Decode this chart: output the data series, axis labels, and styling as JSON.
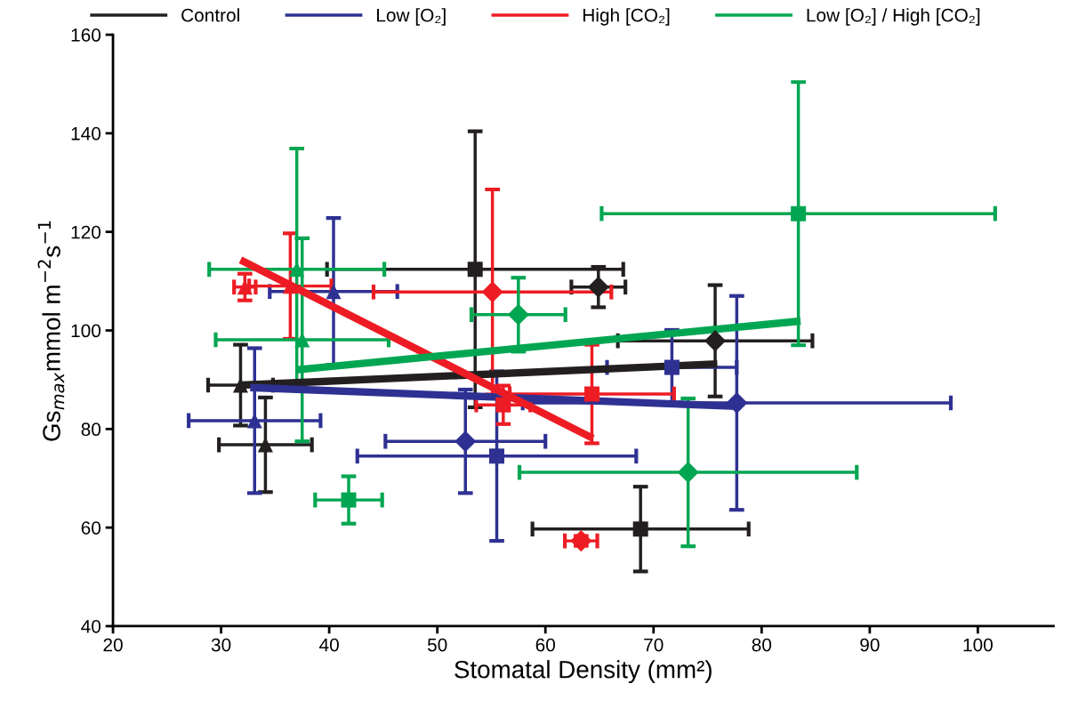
{
  "chart_data": {
    "type": "scatter",
    "xlabel": "Stomatal Density (mm²)",
    "ylabel": "Gs$_{max}$mmol m$^{−2}$s$^{−1}$",
    "xlim": [
      20,
      107
    ],
    "xticks": [
      20,
      30,
      40,
      50,
      60,
      70,
      80,
      90,
      100
    ],
    "ylim": [
      40,
      160
    ],
    "yticks": [
      40,
      60,
      80,
      100,
      120,
      140,
      160
    ],
    "grid": false,
    "legend": "top",
    "series": [
      {
        "type": "line",
        "name": "Control",
        "color": "#231f20",
        "x": [
          31.8,
          75.9
        ],
        "values": [
          88.9,
          93.2
        ]
      },
      {
        "type": "line",
        "name": "Low [O₂]",
        "color": "#2e3192",
        "x": [
          32.7,
          77.7
        ],
        "values": [
          88.4,
          84.6
        ]
      },
      {
        "type": "line",
        "name": "High [CO₂]",
        "color": "#ed1c24",
        "x": [
          31.8,
          64.4
        ],
        "values": [
          114.3,
          78.1
        ]
      },
      {
        "type": "line",
        "name": "Low [O₂] / High [CO₂]",
        "color": "#00a651",
        "x": [
          36.9,
          83.6
        ],
        "values": [
          92.0,
          101.9
        ]
      },
      {
        "color": "#231f20",
        "marker": "triangle",
        "x": [
          31.8,
          34.1
        ],
        "values": [
          88.9,
          76.8
        ],
        "errors": [
          8.2,
          9.6
        ],
        "xerrors": [
          3.0,
          4.3
        ]
      },
      {
        "color": "#231f20",
        "marker": "square",
        "x": [
          53.5,
          68.8
        ],
        "values": [
          112.4,
          59.7
        ],
        "errors": [
          28,
          8.6
        ],
        "xerrors": [
          13.7,
          10
        ]
      },
      {
        "color": "#231f20",
        "marker": "diamond",
        "x": [
          64.9,
          75.7
        ],
        "values": [
          108.8,
          97.9
        ],
        "errors": [
          4.1,
          11.3
        ],
        "xerrors": [
          2.5,
          9
        ]
      },
      {
        "color": "#2e3192",
        "marker": "triangle",
        "x": [
          33.1,
          40.4
        ],
        "values": [
          81.7,
          107.9
        ],
        "errors": [
          14.7,
          14.9
        ],
        "xerrors": [
          6.1,
          5.9
        ]
      },
      {
        "color": "#2e3192",
        "marker": "square",
        "x": [
          55.5,
          71.7
        ],
        "values": [
          74.5,
          92.5
        ],
        "errors": [
          17.2,
          7.6
        ],
        "xerrors": [
          12.9,
          6
        ]
      },
      {
        "color": "#2e3192",
        "marker": "diamond",
        "x": [
          52.6,
          77.7
        ],
        "values": [
          77.5,
          85.3
        ],
        "errors": [
          10.5,
          21.7
        ],
        "xerrors": [
          7.4,
          19.8
        ]
      },
      {
        "color": "#ed1c24",
        "marker": "triangle",
        "x": [
          32.2,
          36.4
        ],
        "values": [
          108.8,
          109.0
        ],
        "errors": [
          2.7,
          10.7
        ],
        "xerrors": [
          1,
          3.8
        ]
      },
      {
        "color": "#ed1c24",
        "marker": "square",
        "x": [
          56.1,
          64.3
        ],
        "values": [
          84.9,
          87.1
        ],
        "errors": [
          3.9,
          10
        ],
        "xerrors": [
          2.5,
          7.6
        ]
      },
      {
        "color": "#ed1c24",
        "marker": "diamond",
        "x": [
          55.1,
          63.3
        ],
        "values": [
          107.8,
          57.3
        ],
        "errors": [
          20.8,
          1
        ],
        "xerrors": [
          11,
          1.5
        ]
      },
      {
        "color": "#00a651",
        "marker": "triangle",
        "x": [
          37.0,
          37.5
        ],
        "values": [
          112.4,
          98.1
        ],
        "errors": [
          24.5,
          20.6
        ],
        "xerrors": [
          8.1,
          8
        ]
      },
      {
        "color": "#00a651",
        "marker": "square",
        "x": [
          41.8,
          83.4
        ],
        "values": [
          65.6,
          123.7
        ],
        "errors": [
          4.8,
          26.7
        ],
        "xerrors": [
          3.1,
          18.2
        ]
      },
      {
        "color": "#00a651",
        "marker": "diamond",
        "x": [
          57.5,
          73.2
        ],
        "values": [
          103.2,
          71.2
        ],
        "errors": [
          7.5,
          15
        ],
        "xerrors": [
          4.35,
          15.6
        ]
      }
    ]
  }
}
